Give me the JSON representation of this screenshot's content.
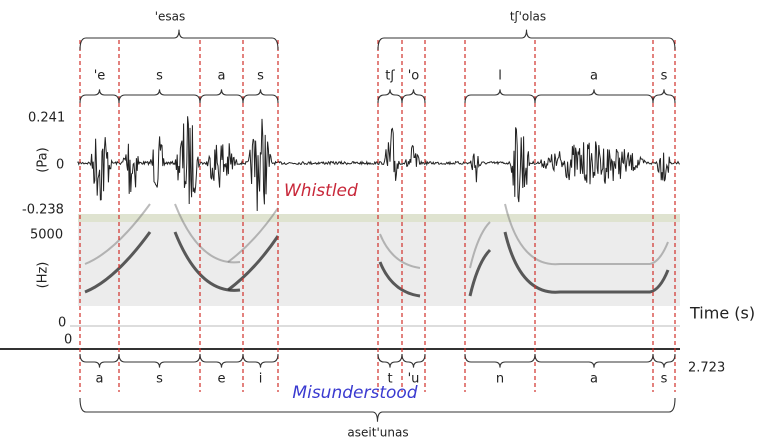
{
  "top_words": [
    "'esas",
    "tʃ'olas"
  ],
  "top_phonemes": [
    "'e",
    "s",
    "a",
    "s",
    "tʃ",
    "'o",
    "l",
    "a",
    "s"
  ],
  "waveform": {
    "y_label": "(Pa)",
    "ticks": [
      "0.241",
      "0",
      "-0.238"
    ],
    "annotation": "Whistled"
  },
  "spectrogram": {
    "y_label": "(Hz)",
    "ticks": [
      "5000",
      "0"
    ]
  },
  "time_axis": {
    "label": "Time (s)",
    "start": "0",
    "end": "2.723"
  },
  "bottom_phonemes": [
    "a",
    "s",
    "e",
    "i",
    "t",
    "'u",
    "n",
    "a",
    "s"
  ],
  "bottom_annotation": "Misunderstood",
  "bottom_word": "aseit'unas"
}
